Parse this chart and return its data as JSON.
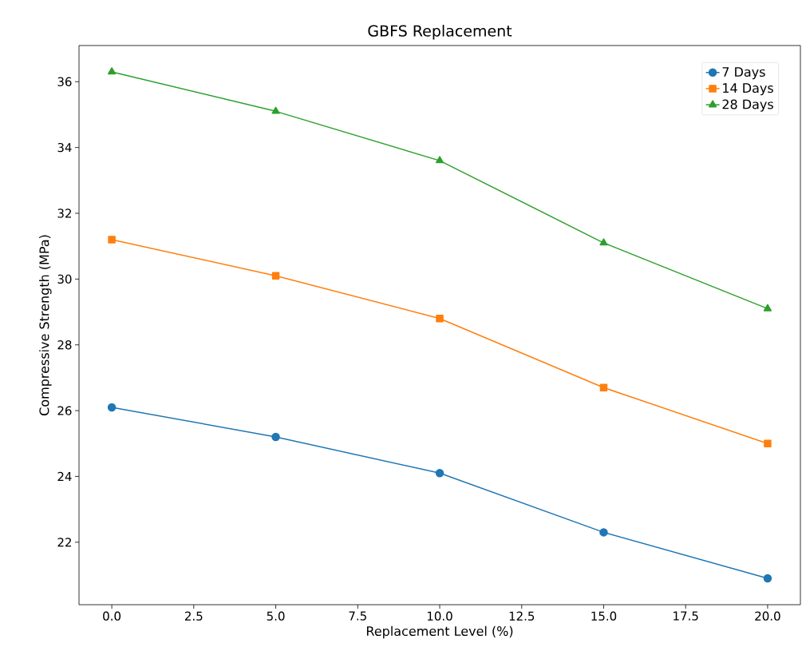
{
  "chart_data": {
    "type": "line",
    "title": "GBFS Replacement",
    "xlabel": "Replacement Level (%)",
    "ylabel": "Compressive Strength (MPa)",
    "x": [
      0,
      5,
      10,
      15,
      20
    ],
    "series": [
      {
        "name": "7 Days",
        "color": "#1f77b4",
        "marker": "circle",
        "values": [
          26.1,
          25.2,
          24.1,
          22.3,
          20.9
        ]
      },
      {
        "name": "14 Days",
        "color": "#ff7f0e",
        "marker": "square",
        "values": [
          31.2,
          30.1,
          28.8,
          26.7,
          25.0
        ]
      },
      {
        "name": "28 Days",
        "color": "#2ca02c",
        "marker": "triangle",
        "values": [
          36.3,
          35.1,
          33.6,
          31.1,
          29.1
        ]
      }
    ],
    "xlim": [
      -1,
      21
    ],
    "ylim": [
      20.1,
      37.1
    ],
    "xticks": [
      {
        "value": 0,
        "label": "0.0"
      },
      {
        "value": 2.5,
        "label": "2.5"
      },
      {
        "value": 5,
        "label": "5.0"
      },
      {
        "value": 7.5,
        "label": "7.5"
      },
      {
        "value": 10,
        "label": "10.0"
      },
      {
        "value": 12.5,
        "label": "12.5"
      },
      {
        "value": 15,
        "label": "15.0"
      },
      {
        "value": 17.5,
        "label": "17.5"
      },
      {
        "value": 20,
        "label": "20.0"
      }
    ],
    "yticks": [
      22,
      24,
      26,
      28,
      30,
      32,
      34,
      36
    ],
    "legend": "top right"
  }
}
